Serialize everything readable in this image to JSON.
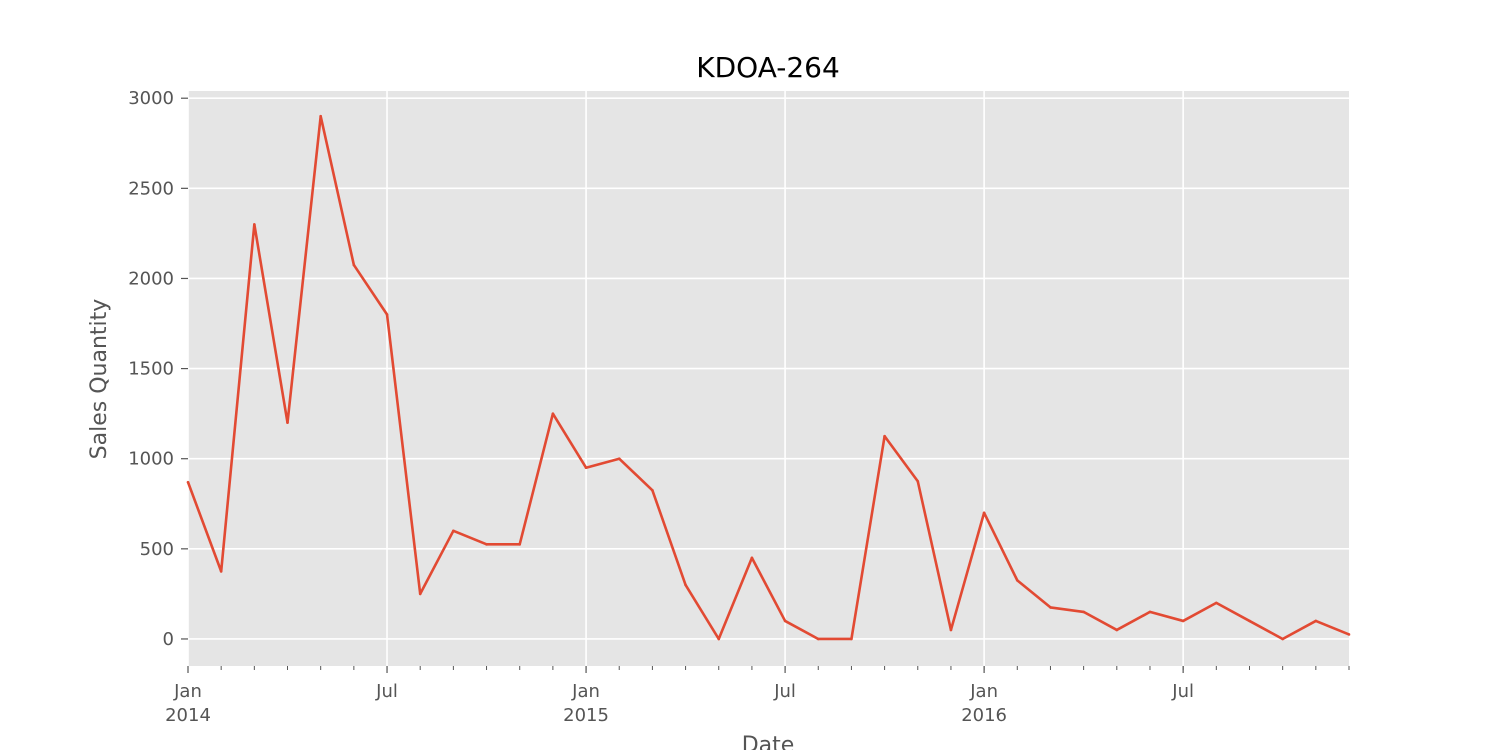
{
  "chart_data": {
    "type": "line",
    "title": "KDOA-264",
    "xlabel": "Date",
    "ylabel": "Sales Quantity",
    "ylim": [
      -150,
      3040
    ],
    "xlim": [
      "2014-01",
      "2016-12"
    ],
    "y_ticks": [
      0,
      500,
      1000,
      1500,
      2000,
      2500,
      3000
    ],
    "x_major_ticks": [
      {
        "date": "2014-01",
        "label": "Jan",
        "year": "2014"
      },
      {
        "date": "2014-07",
        "label": "Jul",
        "year": ""
      },
      {
        "date": "2015-01",
        "label": "Jan",
        "year": "2015"
      },
      {
        "date": "2015-07",
        "label": "Jul",
        "year": ""
      },
      {
        "date": "2016-01",
        "label": "Jan",
        "year": "2016"
      },
      {
        "date": "2016-07",
        "label": "Jul",
        "year": ""
      }
    ],
    "grid": true,
    "series": [
      {
        "color": "#E24A33",
        "points": [
          {
            "x": "2014-01",
            "y": 870
          },
          {
            "x": "2014-02",
            "y": 375
          },
          {
            "x": "2014-03",
            "y": 2300
          },
          {
            "x": "2014-04",
            "y": 1200
          },
          {
            "x": "2014-05",
            "y": 2900
          },
          {
            "x": "2014-06",
            "y": 2075
          },
          {
            "x": "2014-07",
            "y": 1800
          },
          {
            "x": "2014-08",
            "y": 250
          },
          {
            "x": "2014-09",
            "y": 600
          },
          {
            "x": "2014-10",
            "y": 525
          },
          {
            "x": "2014-11",
            "y": 525
          },
          {
            "x": "2014-12",
            "y": 1250
          },
          {
            "x": "2015-01",
            "y": 950
          },
          {
            "x": "2015-02",
            "y": 1000
          },
          {
            "x": "2015-03",
            "y": 825
          },
          {
            "x": "2015-04",
            "y": 300
          },
          {
            "x": "2015-05",
            "y": 0
          },
          {
            "x": "2015-06",
            "y": 450
          },
          {
            "x": "2015-07",
            "y": 100
          },
          {
            "x": "2015-08",
            "y": 0
          },
          {
            "x": "2015-09",
            "y": 0
          },
          {
            "x": "2015-10",
            "y": 1125
          },
          {
            "x": "2015-11",
            "y": 875
          },
          {
            "x": "2015-12",
            "y": 50
          },
          {
            "x": "2016-01",
            "y": 700
          },
          {
            "x": "2016-02",
            "y": 325
          },
          {
            "x": "2016-03",
            "y": 175
          },
          {
            "x": "2016-04",
            "y": 150
          },
          {
            "x": "2016-05",
            "y": 50
          },
          {
            "x": "2016-06",
            "y": 150
          },
          {
            "x": "2016-07",
            "y": 100
          },
          {
            "x": "2016-08",
            "y": 200
          },
          {
            "x": "2016-09",
            "y": 100
          },
          {
            "x": "2016-10",
            "y": 0
          },
          {
            "x": "2016-11",
            "y": 100
          },
          {
            "x": "2016-12",
            "y": 25
          }
        ]
      }
    ]
  }
}
